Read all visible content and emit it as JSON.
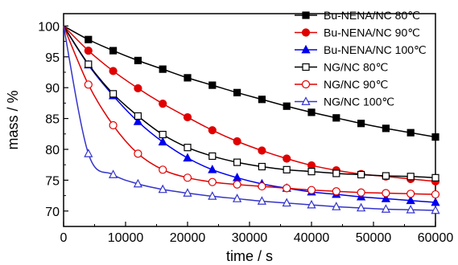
{
  "chart_data": {
    "type": "line",
    "xlabel": "time / s",
    "ylabel": "mass / %",
    "xlim": [
      0,
      60000
    ],
    "ylim": [
      67.5,
      102
    ],
    "xticks": [
      0,
      10000,
      20000,
      30000,
      40000,
      50000,
      60000
    ],
    "xtick_labels": [
      "0",
      "10000",
      "20000",
      "30000",
      "40000",
      "50000",
      "60000"
    ],
    "yticks": [
      70,
      75,
      80,
      85,
      90,
      95,
      100
    ],
    "ytick_labels": [
      "70",
      "75",
      "80",
      "85",
      "90",
      "95",
      "100"
    ],
    "grid": false,
    "legend_position": "top-right",
    "series": [
      {
        "name": "Bu-NENA/NC  80℃",
        "color": "#000000",
        "marker": "square",
        "filled": true,
        "x": [
          0,
          4000,
          8000,
          12000,
          16000,
          20000,
          24000,
          28000,
          32000,
          36000,
          40000,
          44000,
          48000,
          52000,
          56000,
          60000
        ],
        "y": [
          100,
          97.8,
          96.0,
          94.4,
          93.0,
          91.6,
          90.4,
          89.2,
          88.1,
          87.0,
          86.0,
          85.1,
          84.2,
          83.4,
          82.7,
          82.0
        ]
      },
      {
        "name": "Bu-NENA/NC  90℃",
        "color": "#e00000",
        "marker": "circle",
        "filled": true,
        "x": [
          0,
          4000,
          8000,
          12000,
          16000,
          20000,
          24000,
          28000,
          32000,
          36000,
          40000,
          44000,
          48000,
          52000,
          56000,
          60000
        ],
        "y": [
          100,
          96.0,
          92.7,
          89.9,
          87.4,
          85.2,
          83.1,
          81.3,
          79.8,
          78.5,
          77.4,
          76.6,
          76.0,
          75.6,
          75.2,
          74.8
        ]
      },
      {
        "name": "Bu-NENA/NC  100℃",
        "color": "#0000ee",
        "marker": "triangle",
        "filled": true,
        "x": [
          0,
          4000,
          8000,
          12000,
          16000,
          20000,
          24000,
          28000,
          32000,
          36000,
          40000,
          44000,
          48000,
          52000,
          56000,
          60000
        ],
        "y": [
          100,
          93.7,
          88.7,
          84.5,
          81.2,
          78.6,
          76.7,
          75.4,
          74.4,
          73.7,
          73.1,
          72.7,
          72.3,
          72.0,
          71.7,
          71.4
        ]
      },
      {
        "name": "NG/NC  80℃",
        "color": "#000000",
        "marker": "square",
        "filled": false,
        "x": [
          0,
          4000,
          8000,
          12000,
          16000,
          20000,
          24000,
          28000,
          32000,
          36000,
          40000,
          44000,
          48000,
          52000,
          56000,
          60000
        ],
        "y": [
          100,
          93.8,
          89.0,
          85.4,
          82.4,
          80.3,
          78.9,
          77.9,
          77.2,
          76.7,
          76.4,
          76.1,
          75.9,
          75.7,
          75.6,
          75.4
        ]
      },
      {
        "name": "NG/NC  90℃",
        "color": "#e00000",
        "marker": "circle",
        "filled": false,
        "x": [
          0,
          4000,
          8000,
          12000,
          16000,
          20000,
          24000,
          28000,
          32000,
          36000,
          40000,
          44000,
          48000,
          52000,
          56000,
          60000
        ],
        "y": [
          100,
          90.5,
          83.9,
          79.3,
          76.7,
          75.4,
          74.7,
          74.3,
          74.0,
          73.7,
          73.4,
          73.2,
          73.0,
          72.9,
          72.8,
          72.7
        ]
      },
      {
        "name": "NG/NC  100℃",
        "color": "#3333cc",
        "marker": "triangle",
        "filled": false,
        "x": [
          0,
          4000,
          8000,
          12000,
          16000,
          20000,
          24000,
          28000,
          32000,
          36000,
          40000,
          44000,
          48000,
          52000,
          56000,
          60000
        ],
        "y": [
          100,
          79.3,
          75.9,
          74.4,
          73.5,
          72.9,
          72.4,
          72.0,
          71.6,
          71.3,
          71.0,
          70.7,
          70.5,
          70.3,
          70.2,
          70.1
        ]
      }
    ]
  }
}
